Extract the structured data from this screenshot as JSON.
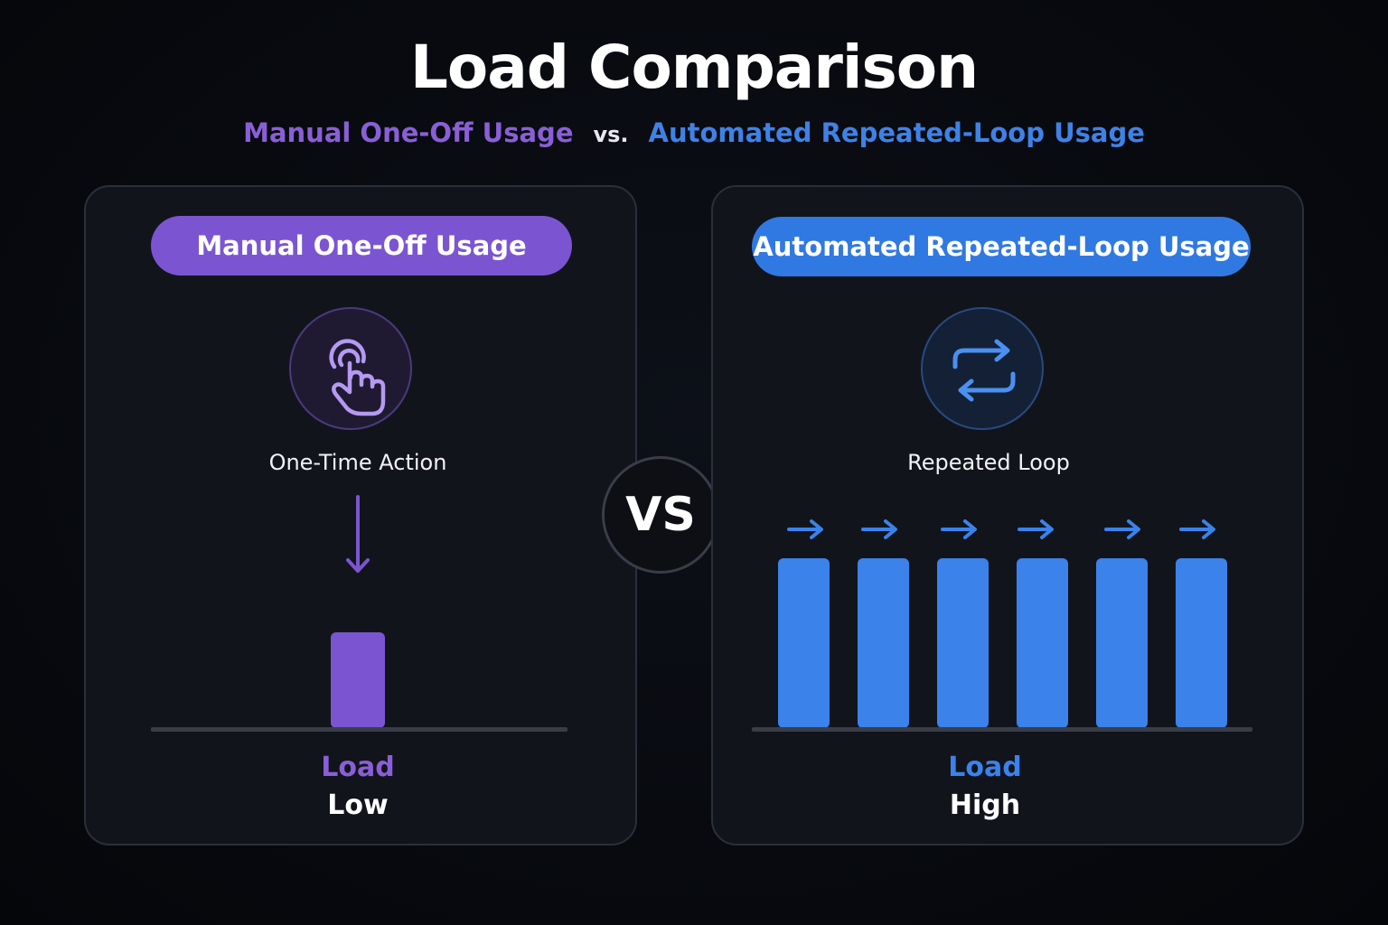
{
  "title": "Load Comparison",
  "subtitle": {
    "left": "Manual One-Off Usage",
    "separator": "vs.",
    "right": "Automated Repeated-Loop Usage"
  },
  "vs_badge": "VS",
  "left_panel": {
    "pill": "Manual One-Off Usage",
    "icon": "tap-hand-icon",
    "caption": "One-Time Action",
    "load_label": "Load",
    "load_value": "Low",
    "bar_count": 1
  },
  "right_panel": {
    "pill": "Automated Repeated-Loop Usage",
    "icon": "repeat-loop-icon",
    "caption": "Repeated Loop",
    "load_label": "Load",
    "load_value": "High",
    "bar_count": 6
  },
  "colors": {
    "purple": "#7b55d1",
    "blue": "#3b82eb",
    "background": "#07090e",
    "panel": "#12141c"
  }
}
